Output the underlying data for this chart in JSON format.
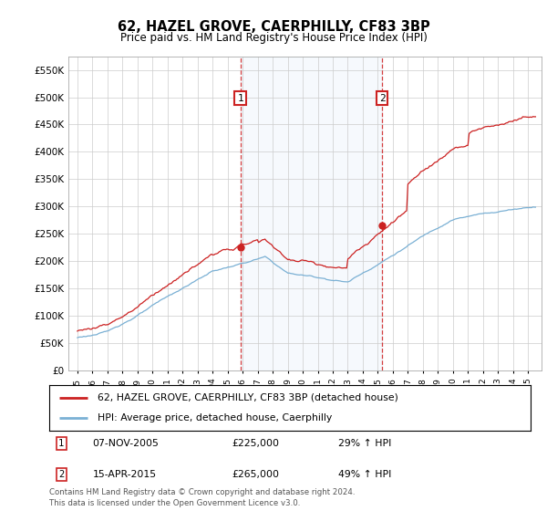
{
  "title": "62, HAZEL GROVE, CAERPHILLY, CF83 3BP",
  "subtitle": "Price paid vs. HM Land Registry's House Price Index (HPI)",
  "ylim": [
    0,
    575000
  ],
  "yticks": [
    0,
    50000,
    100000,
    150000,
    200000,
    250000,
    300000,
    350000,
    400000,
    450000,
    500000,
    550000
  ],
  "ytick_labels": [
    "£0",
    "£50K",
    "£100K",
    "£150K",
    "£200K",
    "£250K",
    "£300K",
    "£350K",
    "£400K",
    "£450K",
    "£500K",
    "£550K"
  ],
  "red_line_color": "#cc2222",
  "blue_line_color": "#7ab0d4",
  "grid_color": "#cccccc",
  "annotation1_year": 2005.85,
  "annotation1_price": 225000,
  "annotation1_date": "07-NOV-2005",
  "annotation1_pct": "29% ↑ HPI",
  "annotation2_year": 2015.29,
  "annotation2_price": 265000,
  "annotation2_date": "15-APR-2015",
  "annotation2_pct": "49% ↑ HPI",
  "legend_red_label": "62, HAZEL GROVE, CAERPHILLY, CF83 3BP (detached house)",
  "legend_blue_label": "HPI: Average price, detached house, Caerphilly",
  "footer": "Contains HM Land Registry data © Crown copyright and database right 2024.\nThis data is licensed under the Open Government Licence v3.0."
}
